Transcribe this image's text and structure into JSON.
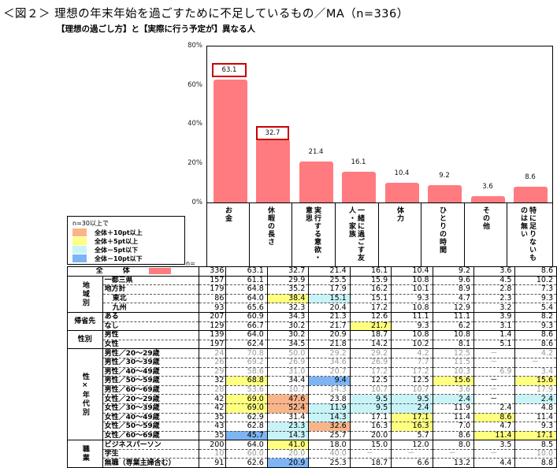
{
  "title": "＜図２＞ 理想の年末年始を過ごすために不足しているもの／MA（n=336）",
  "subtitle": "【理想の過ごし方】と【実際に行う予定が】異なる人",
  "chart_data": {
    "type": "bar",
    "title": "理想の年末年始を過ごすために不足しているもの／MA（n=336）",
    "subtitle": "【理想の過ごし方】と【実際に行う予定が】異なる人",
    "categories": [
      "お金",
      "休暇の長さ",
      "実行する意欲・意思",
      "一緒に過ごす友人・家族",
      "体力",
      "ひとりの時間",
      "その他",
      "特に足りないものは無い"
    ],
    "values": [
      63.1,
      32.7,
      21.4,
      16.1,
      10.4,
      9.2,
      3.6,
      8.6
    ],
    "highlighted": [
      "63.1",
      "32.7"
    ],
    "ylabel": "",
    "xlabel": "",
    "ylim": [
      0,
      80
    ],
    "yticks": [
      "0%",
      "20%",
      "40%",
      "60%",
      "80%"
    ],
    "bar_color": "#ff7b80"
  },
  "legend": {
    "title": "n=30以上で",
    "items": [
      {
        "label": "全体＋10pt以上",
        "color": "#f9b48a"
      },
      {
        "label": "全体＋5pt以上",
        "color": "#ffff80"
      },
      {
        "label": "全体－5pt以下",
        "color": "#c8f4f8"
      },
      {
        "label": "全体－10pt以下",
        "color": "#7cb4f4"
      }
    ]
  },
  "table": {
    "n_label": "n=",
    "total": {
      "label": "全　体",
      "n": "336",
      "values": [
        "63.1",
        "32.7",
        "21.4",
        "16.1",
        "10.4",
        "9.2",
        "3.6",
        "8.6"
      ]
    },
    "groups": [
      {
        "name": "地域別",
        "rows": [
          {
            "label": "一都三県",
            "n": "157",
            "values": [
              "61.1",
              "29.9",
              "25.5",
              "15.9",
              "10.8",
              "9.6",
              "4.5",
              "10.2"
            ]
          },
          {
            "label": "地方計",
            "n": "179",
            "values": [
              "64.8",
              "35.2",
              "17.9",
              "16.2",
              "10.1",
              "8.9",
              "2.8",
              "7.3"
            ]
          },
          {
            "label": "東北",
            "n": "86",
            "values": [
              "64.0",
              "38.4",
              "15.1",
              "15.1",
              "9.3",
              "4.7",
              "2.3",
              "9.3"
            ]
          },
          {
            "label": "九州",
            "n": "93",
            "values": [
              "65.6",
              "32.3",
              "20.4",
              "17.2",
              "10.8",
              "12.9",
              "3.2",
              "5.4"
            ]
          }
        ]
      },
      {
        "name": "帰省先",
        "rows": [
          {
            "label": "ある",
            "n": "207",
            "values": [
              "60.9",
              "34.3",
              "21.3",
              "12.6",
              "11.1",
              "11.1",
              "3.9",
              "8.2"
            ]
          },
          {
            "label": "なし",
            "n": "129",
            "values": [
              "66.7",
              "30.2",
              "21.7",
              "21.7",
              "9.3",
              "6.2",
              "3.1",
              "9.3"
            ]
          }
        ]
      },
      {
        "name": "性別",
        "rows": [
          {
            "label": "男性",
            "n": "139",
            "values": [
              "64.0",
              "30.2",
              "20.9",
              "18.7",
              "10.8",
              "10.8",
              "1.4",
              "8.6"
            ]
          },
          {
            "label": "女性",
            "n": "197",
            "values": [
              "62.4",
              "34.5",
              "21.8",
              "14.2",
              "10.2",
              "8.1",
              "5.1",
              "8.6"
            ]
          }
        ]
      },
      {
        "name": "性×年代別",
        "rows": [
          {
            "label": "男性／20～29歳",
            "n": "24",
            "values": [
              "70.8",
              "50.0",
              "29.2",
              "29.2",
              "4.2",
              "12.5",
              "－",
              "4.2"
            ]
          },
          {
            "label": "男性／30～39歳",
            "n": "26",
            "values": [
              "69.2",
              "26.9",
              "34.6",
              "26.9",
              "7.7",
              "11.5",
              "－",
              "－"
            ]
          },
          {
            "label": "男性／40～49歳",
            "n": "29",
            "values": [
              "58.6",
              "31.0",
              "20.7",
              "17.2",
              "17.2",
              "10.3",
              "6.9",
              "3.4"
            ]
          },
          {
            "label": "男性／50～59歳",
            "n": "32",
            "values": [
              "68.8",
              "34.4",
              "9.4",
              "12.5",
              "12.5",
              "15.6",
              "－",
              "15.6"
            ]
          },
          {
            "label": "男性／60～69歳",
            "n": "28",
            "values": [
              "53.6",
              "10.7",
              "14.3",
              "10.7",
              "10.7",
              "3.6",
              "－",
              "17.9"
            ]
          },
          {
            "label": "女性／20～29歳",
            "n": "42",
            "values": [
              "69.0",
              "47.6",
              "23.8",
              "9.5",
              "9.5",
              "2.4",
              "－",
              "2.4"
            ]
          },
          {
            "label": "女性／30～39歳",
            "n": "42",
            "values": [
              "69.0",
              "52.4",
              "11.9",
              "9.5",
              "2.4",
              "11.9",
              "2.4",
              "4.8"
            ]
          },
          {
            "label": "女性／40～49歳",
            "n": "35",
            "values": [
              "62.9",
              "31.4",
              "14.3",
              "17.1",
              "17.1",
              "11.4",
              "8.6",
              "11.4"
            ]
          },
          {
            "label": "女性／50～59歳",
            "n": "43",
            "values": [
              "62.8",
              "23.3",
              "32.6",
              "16.3",
              "16.3",
              "7.0",
              "4.7",
              "9.3"
            ]
          },
          {
            "label": "女性／60～69歳",
            "n": "35",
            "values": [
              "45.7",
              "14.3",
              "25.7",
              "20.0",
              "5.7",
              "8.6",
              "11.4",
              "17.1"
            ]
          }
        ]
      },
      {
        "name": "職業",
        "rows": [
          {
            "label": "ビジネスパーソン",
            "n": "200",
            "values": [
              "64.0",
              "41.0",
              "18.0",
              "15.0",
              "12.0",
              "8.0",
              "3.5",
              "8.5"
            ]
          },
          {
            "label": "学生",
            "n": "10",
            "values": [
              "60.0",
              "20.0",
              "40.0",
              "－",
              "－",
              "－",
              "－",
              "10.0"
            ]
          },
          {
            "label": "無職（専業主婦含む）",
            "n": "91",
            "values": [
              "62.6",
              "20.9",
              "25.3",
              "18.7",
              "6.6",
              "13.2",
              "4.4",
              "8.8"
            ]
          }
        ]
      }
    ]
  }
}
